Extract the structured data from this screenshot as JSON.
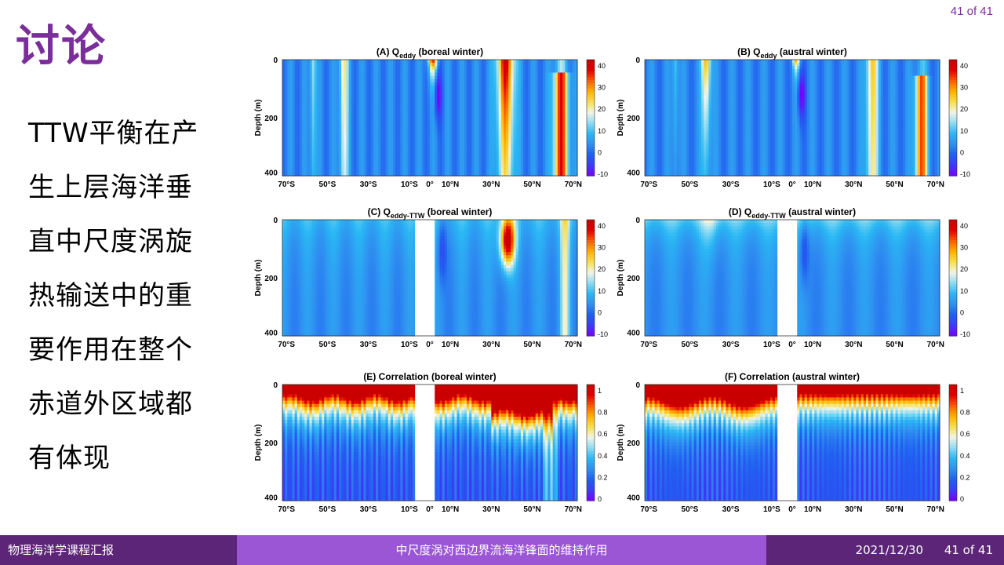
{
  "slide": {
    "page_indicator": "41 of 41",
    "title": "讨论",
    "body_lines": [
      "TTW平衡在产",
      "生上层海洋垂",
      "直中尺度涡旋",
      "热输送中的重",
      "要作用在整个",
      "赤道外区域都",
      "有体现"
    ]
  },
  "footer": {
    "left": "物理海洋学课程汇报",
    "center": "中尺度涡对西边界流海洋锋面的维持作用",
    "date": "2021/12/30",
    "page": "41 of 41"
  },
  "figure": {
    "x_ticks": [
      "70°S",
      "50°S",
      "30°S",
      "10°S",
      "0°",
      "10°N",
      "30°N",
      "50°N",
      "70°N"
    ],
    "y_ticks": [
      "0",
      "200",
      "400"
    ],
    "ylabel": "Depth (m)",
    "panels": [
      {
        "prefix": "(A) Q",
        "sub": "eddy",
        "season": " (boreal winter)",
        "colorbar": [
          "40",
          "30",
          "20",
          "10",
          "0",
          "-10"
        ]
      },
      {
        "prefix": "(B) Q",
        "sub": "eddy",
        "season": " (austral winter)",
        "colorbar": [
          "40",
          "30",
          "20",
          "10",
          "0",
          "-10"
        ]
      },
      {
        "prefix": "(C) Q",
        "sub": "eddy-TTW",
        "season": "  (boreal winter)",
        "colorbar": [
          "40",
          "30",
          "20",
          "10",
          "0",
          "-10"
        ]
      },
      {
        "prefix": "(D) Q",
        "sub": "eddy-TTW",
        "season": "  (austral winter)",
        "colorbar": [
          "40",
          "30",
          "20",
          "10",
          "0",
          "-10"
        ]
      },
      {
        "prefix": "(E) Correlation",
        "sub": "",
        "season": "  (boreal winter)",
        "colorbar": [
          "1",
          "0.8",
          "0.6",
          "0.4",
          "0.2",
          "0"
        ]
      },
      {
        "prefix": "(F) Correlation",
        "sub": "",
        "season": "  (austral winter)",
        "colorbar": [
          "1",
          "0.8",
          "0.6",
          "0.4",
          "0.2",
          "0"
        ]
      }
    ]
  }
}
